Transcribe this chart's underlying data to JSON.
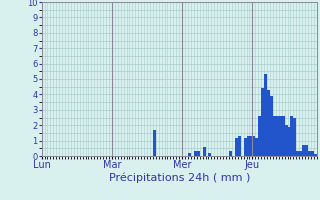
{
  "xlabel": "Précipitations 24h ( mm )",
  "background_color": "#d8f0ee",
  "bar_color": "#2255cc",
  "grid_color_h": "#aacccc",
  "grid_color_v": "#aacccc",
  "vline_color": "#888899",
  "ylim": [
    0,
    10
  ],
  "yticks": [
    0,
    1,
    2,
    3,
    4,
    5,
    6,
    7,
    8,
    9,
    10
  ],
  "day_labels": [
    "Lun",
    "Mar",
    "Mer",
    "Jeu"
  ],
  "day_positions": [
    0,
    24,
    48,
    72
  ],
  "values": [
    0,
    0,
    0,
    0,
    0,
    0,
    0,
    0,
    0,
    0,
    0,
    0,
    0,
    0,
    0,
    0,
    0,
    0,
    0,
    0,
    0,
    0,
    0,
    0,
    0,
    0,
    0,
    0,
    0,
    0,
    0,
    0,
    0,
    0,
    0,
    0,
    0,
    0,
    1.7,
    0,
    0,
    0,
    0,
    0,
    0,
    0,
    0,
    0,
    0,
    0,
    0.2,
    0,
    0.3,
    0.3,
    0,
    0.6,
    0,
    0.2,
    0,
    0,
    0,
    0,
    0,
    0,
    0.3,
    0,
    1.2,
    1.3,
    0,
    1.2,
    1.3,
    1.3,
    1.3,
    1.2,
    2.6,
    4.4,
    5.3,
    4.3,
    3.9,
    2.6,
    2.6,
    2.6,
    2.6,
    2.0,
    1.9,
    2.6,
    2.5,
    0.3,
    0.3,
    0.7,
    0.7,
    0.3,
    0.3,
    0.1
  ]
}
